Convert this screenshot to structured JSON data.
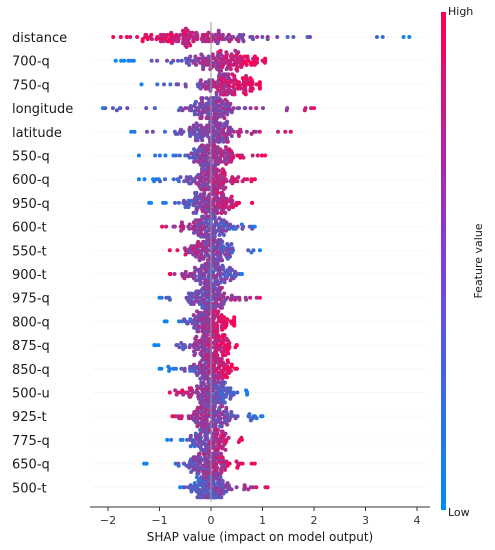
{
  "chart_data": {
    "type": "scatter",
    "subtype": "shap-beeswarm",
    "xlabel": "SHAP value (impact on model output)",
    "ylabel": "",
    "xlim": [
      -2.5,
      4.2
    ],
    "xticks": [
      -2,
      -1,
      0,
      1,
      2,
      3,
      4
    ],
    "grid": false,
    "legend": "colorbar-right",
    "colorbar": {
      "label": "Feature value",
      "high_label": "High",
      "low_label": "Low",
      "low_color": "#008bfb",
      "high_color": "#ff0052"
    },
    "series": [
      {
        "name": "distance",
        "min": -1.9,
        "max": 3.85,
        "spread": 1.0,
        "center": -0.3,
        "bias": -1
      },
      {
        "name": "700-q",
        "min": -1.85,
        "max": 1.05,
        "spread": 0.65,
        "center": 0.3,
        "bias": 1
      },
      {
        "name": "750-q",
        "min": -1.35,
        "max": 0.95,
        "spread": 0.6,
        "center": 0.3,
        "bias": 1
      },
      {
        "name": "longitude",
        "min": -2.1,
        "max": 2.0,
        "spread": 0.5,
        "center": 0.0,
        "bias": 0.3
      },
      {
        "name": "latitude",
        "min": -1.55,
        "max": 1.55,
        "spread": 0.55,
        "center": 0.0,
        "bias": 0.6
      },
      {
        "name": "550-q",
        "min": -1.4,
        "max": 1.05,
        "spread": 0.45,
        "center": 0.0,
        "bias": 1
      },
      {
        "name": "600-q",
        "min": -1.4,
        "max": 0.85,
        "spread": 0.45,
        "center": 0.0,
        "bias": 1
      },
      {
        "name": "950-q",
        "min": -1.2,
        "max": 0.8,
        "spread": 0.45,
        "center": 0.0,
        "bias": 1
      },
      {
        "name": "600-t",
        "min": -0.95,
        "max": 0.85,
        "spread": 0.4,
        "center": 0.0,
        "bias": -0.5
      },
      {
        "name": "550-t",
        "min": -0.8,
        "max": 0.95,
        "spread": 0.4,
        "center": 0.0,
        "bias": -0.7
      },
      {
        "name": "900-t",
        "min": -0.8,
        "max": 0.6,
        "spread": 0.4,
        "center": 0.0,
        "bias": -0.3
      },
      {
        "name": "975-q",
        "min": -1.0,
        "max": 0.95,
        "spread": 0.4,
        "center": 0.0,
        "bias": 0.3
      },
      {
        "name": "800-q",
        "min": -0.9,
        "max": 0.45,
        "spread": 0.35,
        "center": 0.0,
        "bias": 1
      },
      {
        "name": "875-q",
        "min": -1.1,
        "max": 0.5,
        "spread": 0.35,
        "center": 0.0,
        "bias": 1
      },
      {
        "name": "850-q",
        "min": -1.0,
        "max": 0.5,
        "spread": 0.35,
        "center": 0.0,
        "bias": 1
      },
      {
        "name": "500-u",
        "min": -0.8,
        "max": 0.7,
        "spread": 0.4,
        "center": 0.0,
        "bias": -0.8
      },
      {
        "name": "925-t",
        "min": -0.75,
        "max": 1.0,
        "spread": 0.4,
        "center": 0.0,
        "bias": -0.6
      },
      {
        "name": "775-q",
        "min": -0.85,
        "max": 0.6,
        "spread": 0.35,
        "center": 0.0,
        "bias": 1
      },
      {
        "name": "650-q",
        "min": -1.3,
        "max": 0.85,
        "spread": 0.4,
        "center": 0.0,
        "bias": 1
      },
      {
        "name": "500-t",
        "min": -0.6,
        "max": 1.1,
        "spread": 0.35,
        "center": 0.0,
        "bias": 0.5
      }
    ]
  }
}
